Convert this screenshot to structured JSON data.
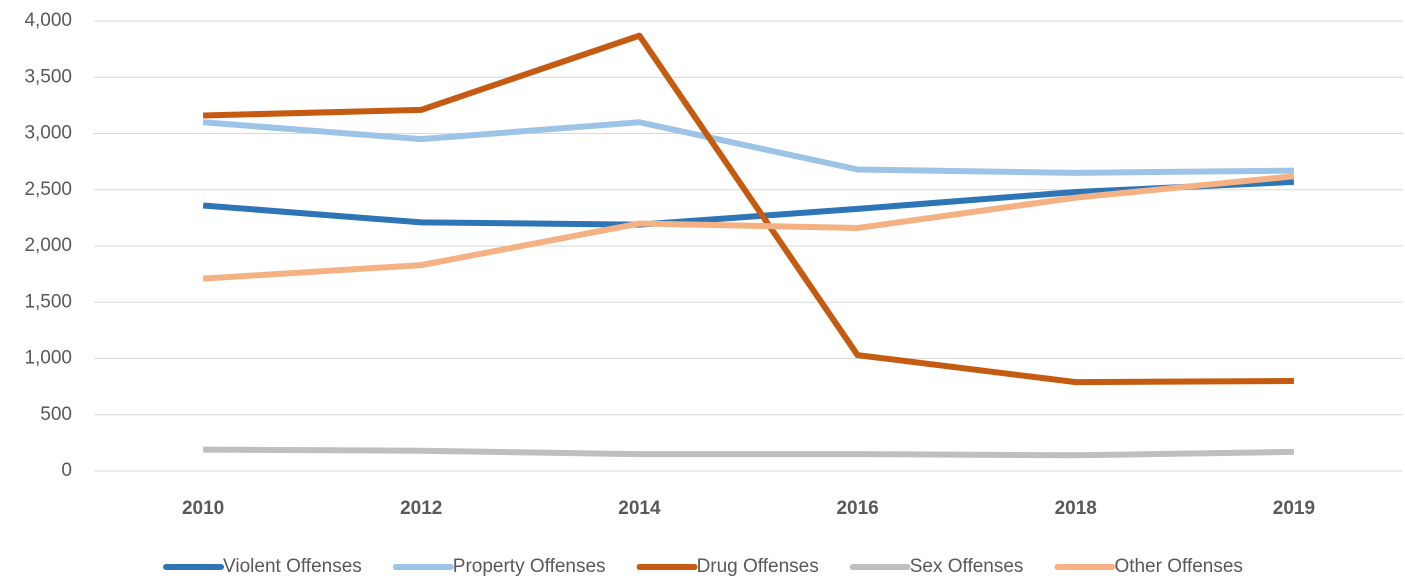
{
  "chart_data": {
    "type": "line",
    "categories": [
      "2010",
      "2012",
      "2014",
      "2016",
      "2018",
      "2019"
    ],
    "series": [
      {
        "name": "Violent Offenses",
        "color": "#2e75b6",
        "values": [
          2360,
          2210,
          2190,
          2330,
          2480,
          2570
        ]
      },
      {
        "name": "Property Offenses",
        "color": "#9dc3e6",
        "values": [
          3100,
          2950,
          3100,
          2680,
          2650,
          2670
        ]
      },
      {
        "name": "Drug Offenses",
        "color": "#c55a11",
        "values": [
          3160,
          3210,
          3870,
          1030,
          790,
          800
        ]
      },
      {
        "name": "Sex Offenses",
        "color": "#bfbfbf",
        "values": [
          190,
          180,
          150,
          150,
          140,
          170
        ]
      },
      {
        "name": "Other Offenses",
        "color": "#f4b183",
        "values": [
          1710,
          1830,
          2200,
          2160,
          2430,
          2620
        ]
      }
    ],
    "ylim": [
      0,
      4000
    ],
    "yticks": [
      0,
      500,
      {
        "value": 1000,
        "label": "1,000"
      },
      {
        "value": 1500,
        "label": "1,500"
      },
      {
        "value": 2000,
        "label": "2,000"
      },
      {
        "value": 2500,
        "label": "2,500"
      },
      {
        "value": 3000,
        "label": "3,000"
      },
      {
        "value": 3500,
        "label": "3,500"
      },
      {
        "value": 4000,
        "label": "4,000"
      }
    ],
    "grid": true,
    "legend": "bottom"
  }
}
